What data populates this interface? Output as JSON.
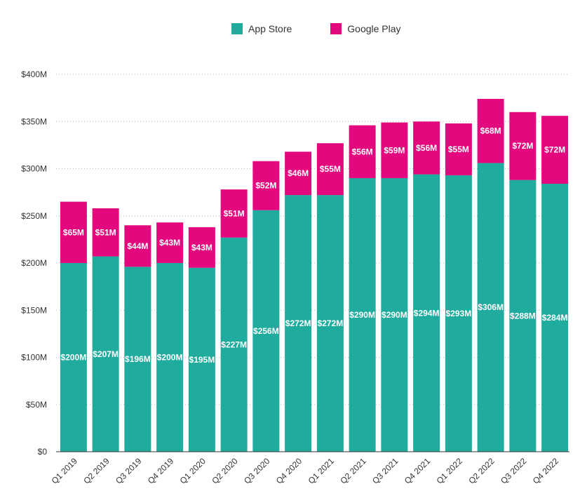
{
  "chart_data": {
    "type": "bar",
    "stacked": true,
    "categories": [
      "Q1 2019",
      "Q2 2019",
      "Q3 2019",
      "Q4 2019",
      "Q1 2020",
      "Q2 2020",
      "Q3 2020",
      "Q4 2020",
      "Q1 2021",
      "Q2 2021",
      "Q3 2021",
      "Q4 2021",
      "Q1 2022",
      "Q2 2022",
      "Q3 2022",
      "Q4 2022"
    ],
    "series": [
      {
        "name": "App Store",
        "color": "#1fab9e",
        "values": [
          200,
          207,
          196,
          200,
          195,
          227,
          256,
          272,
          272,
          290,
          290,
          294,
          293,
          306,
          288,
          284
        ],
        "labels": [
          "$200M",
          "$207M",
          "$196M",
          "$200M",
          "$195M",
          "$227M",
          "$256M",
          "$272M",
          "$272M",
          "$290M",
          "$290M",
          "$294M",
          "$293M",
          "$306M",
          "$288M",
          "$284M"
        ]
      },
      {
        "name": "Google Play",
        "color": "#e3087e",
        "values": [
          65,
          51,
          44,
          43,
          43,
          51,
          52,
          46,
          55,
          56,
          59,
          56,
          55,
          68,
          72,
          72
        ],
        "labels": [
          "$65M",
          "$51M",
          "$44M",
          "$43M",
          "$43M",
          "$51M",
          "$52M",
          "$46M",
          "$55M",
          "$56M",
          "$59M",
          "$56M",
          "$55M",
          "$68M",
          "$72M",
          "$72M"
        ]
      }
    ],
    "ylim": [
      0,
      400
    ],
    "yticks": [
      0,
      50,
      100,
      150,
      200,
      250,
      300,
      350,
      400
    ],
    "ytick_labels": [
      "$0",
      "$50M",
      "$100M",
      "$150M",
      "$200M",
      "$250M",
      "$300M",
      "$350M",
      "$400M"
    ],
    "grid": true,
    "legend_position": "top-center"
  }
}
